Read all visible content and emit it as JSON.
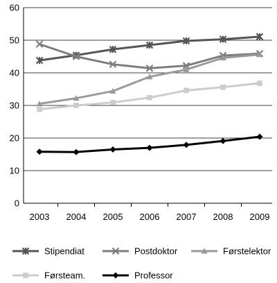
{
  "chart_data": {
    "type": "line",
    "x": [
      "2003",
      "2004",
      "2005",
      "2006",
      "2007",
      "2008",
      "2009"
    ],
    "ylim": [
      0,
      60
    ],
    "yticks": [
      0,
      10,
      20,
      30,
      40,
      50,
      60
    ],
    "grid": "horizontal",
    "legend_position": "bottom",
    "series": [
      {
        "name": "Stipendiat",
        "color": "#555555",
        "marker": "x-star",
        "values": [
          43.8,
          45.4,
          47.2,
          48.5,
          49.8,
          50.3,
          51.1
        ]
      },
      {
        "name": "Postdoktor",
        "color": "#7d7d7d",
        "marker": "x",
        "values": [
          48.8,
          45.0,
          42.6,
          41.4,
          42.2,
          45.3,
          45.9
        ]
      },
      {
        "name": "Førstelektor",
        "color": "#9a9a9a",
        "marker": "triangle",
        "values": [
          30.5,
          32.2,
          34.4,
          38.8,
          41.0,
          44.6,
          45.6
        ]
      },
      {
        "name": "Førsteam.",
        "color": "#cccccc",
        "marker": "square",
        "values": [
          28.8,
          30.0,
          30.9,
          32.4,
          34.6,
          35.6,
          36.8
        ]
      },
      {
        "name": "Professor",
        "color": "#000000",
        "marker": "diamond",
        "values": [
          15.8,
          15.7,
          16.5,
          17.0,
          17.9,
          19.1,
          20.4
        ]
      }
    ]
  }
}
